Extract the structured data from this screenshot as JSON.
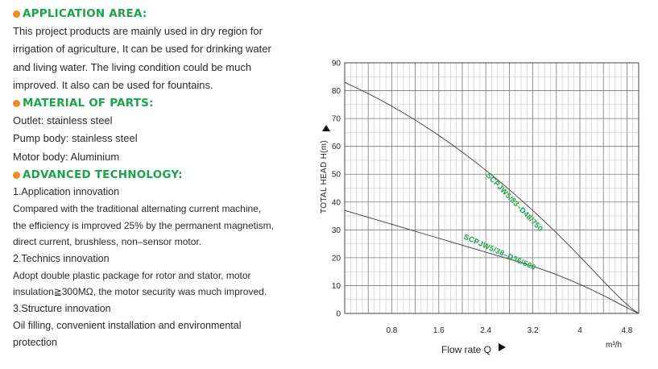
{
  "sections": [
    {
      "title": "APPLICATION AREA:",
      "lines": [
        "This project products are mainly used in dry region for",
        "irrigation of agriculture, It can be used for drinking water",
        "and living water. The living condition could be much",
        "improved. It also can be used for fountains."
      ]
    },
    {
      "title": "MATERIAL OF PARTS:",
      "lines": [
        "Outlet: stainless steel",
        "Pump body: stainless steel",
        "Motor body: Aluminium"
      ]
    },
    {
      "title": "ADVANCED TECHNOLOGY:",
      "lines": [
        "1.Application innovation",
        "Compared with the traditional alternating current machine,",
        "the efficiency is improved 25% by the permanent magnetism,",
        "direct current, brushless, non–sensor motor.",
        "2.Technics innovation",
        "Adopt double plastic package for rotor and stator, motor",
        "insulation≧300MΩ, the motor security was much improved.",
        "3.Structure innovation",
        "Oil filling, convenient installation and environmental",
        "protection"
      ]
    }
  ],
  "colors": {
    "title_green": "#1aa34a",
    "bullet_orange": "#f08a24",
    "curve_label": "#1aa34a"
  },
  "chart_data": {
    "type": "line",
    "xlabel": "Flow rate Q",
    "ylabel": "TOTAL HEAD H(m)",
    "x_unit": "m³/h",
    "xlim": [
      0,
      5
    ],
    "ylim": [
      0,
      90
    ],
    "x_ticks": [
      "0.8",
      "1.6",
      "2.4",
      "3.2",
      "4",
      "4.8"
    ],
    "y_ticks": [
      "0",
      "10",
      "20",
      "30",
      "40",
      "50",
      "60",
      "70",
      "80",
      "90"
    ],
    "grid": true,
    "series": [
      {
        "name": "SCPJW5/83–D48/750",
        "x": [
          0,
          0.4,
          0.8,
          1.2,
          1.6,
          2.0,
          2.4,
          2.8,
          3.2,
          3.6,
          4.0,
          4.4,
          4.8,
          5.0
        ],
        "y": [
          83,
          79,
          74.5,
          69.5,
          64,
          58,
          51.5,
          44.5,
          37,
          29,
          20.5,
          11.5,
          3,
          0
        ]
      },
      {
        "name": "SCPJW5/38–D36/500",
        "x": [
          0,
          0.4,
          0.8,
          1.2,
          1.6,
          2.0,
          2.4,
          2.8,
          3.2,
          3.6,
          4.0,
          4.4,
          4.8,
          5.0
        ],
        "y": [
          37,
          34.5,
          32,
          29.5,
          27,
          24.5,
          22,
          19.5,
          17,
          14,
          10.5,
          6.5,
          2,
          0
        ]
      }
    ]
  }
}
